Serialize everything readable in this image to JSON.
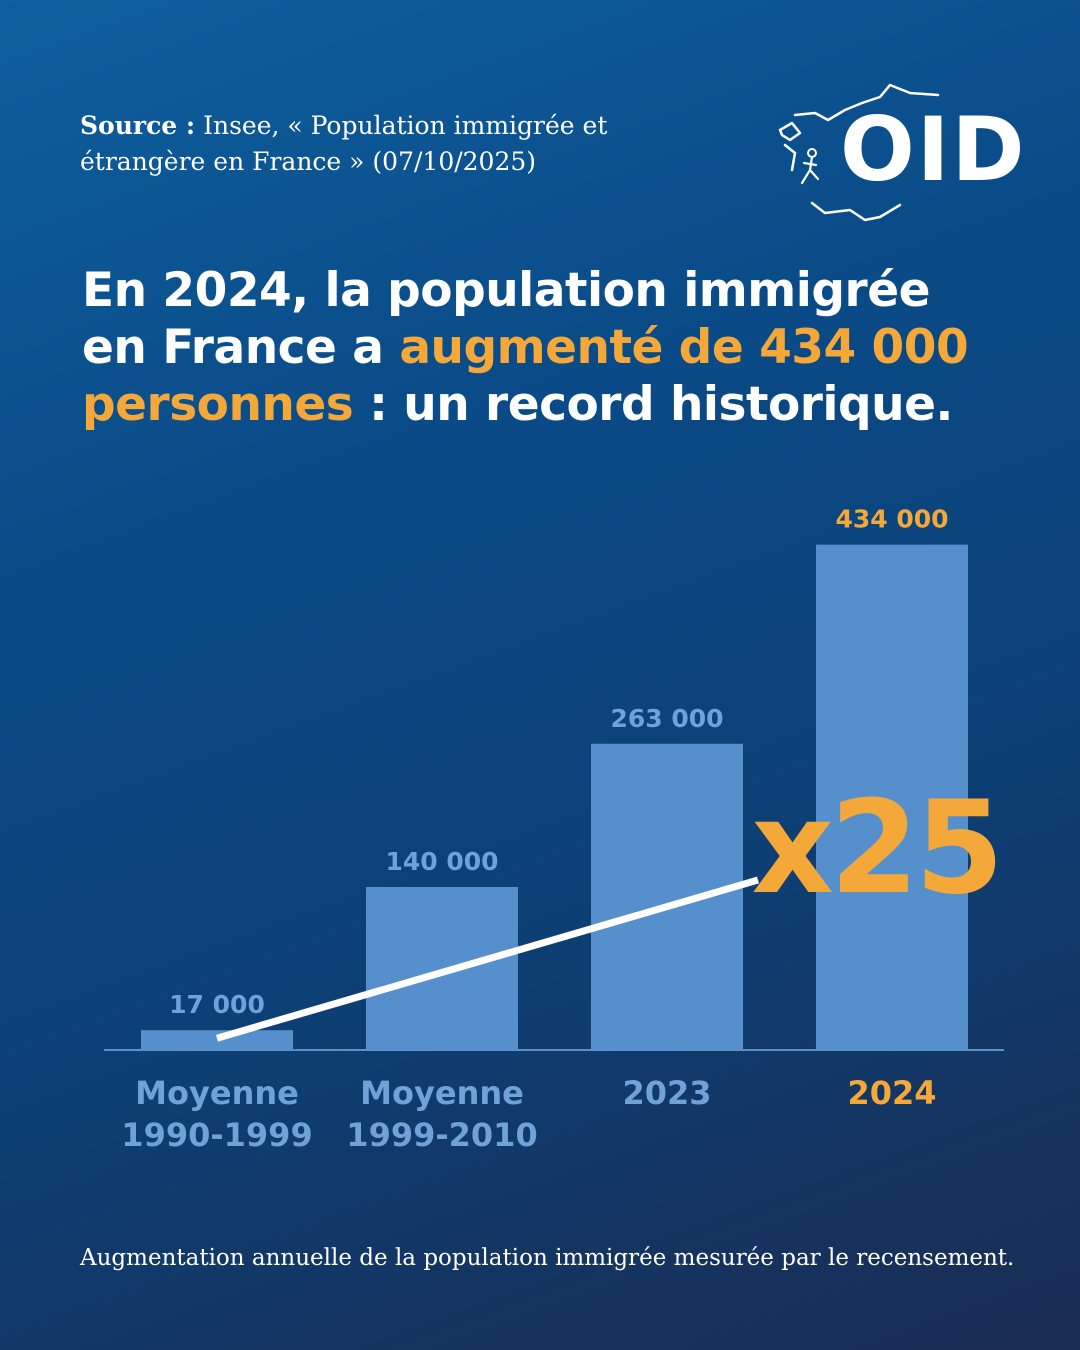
{
  "source": {
    "label": "Source :",
    "text": "Insee, « Population immigrée et étrangère en France » (07/10/2025)"
  },
  "logo": {
    "text": "OID"
  },
  "headline": {
    "part1": "En 2024, la population immigrée en France a ",
    "highlight": "augmenté de 434 000 personnes",
    "part2": " :  un record historique."
  },
  "colors": {
    "bar": "#5590cd",
    "value_label": "#6fa2d8",
    "highlight": "#f5a83a",
    "axis": "#5a8fc9",
    "trend_line": "#ffffff"
  },
  "chart_data": {
    "type": "bar",
    "categories": [
      [
        "Moyenne",
        "1990-1999"
      ],
      [
        "Moyenne",
        "1999-2010"
      ],
      [
        "2023"
      ],
      [
        "2024"
      ]
    ],
    "values": [
      17000,
      140000,
      263000,
      434000
    ],
    "value_labels": [
      "17 000",
      "140 000",
      "263 000",
      "434 000"
    ],
    "highlight_index": 3,
    "ylim": [
      0,
      450000
    ],
    "annotation": "x25",
    "title": "",
    "xlabel": "",
    "ylabel": ""
  },
  "footer": {
    "text": "Augmentation annuelle de la population immigrée mesurée par le recensement."
  }
}
